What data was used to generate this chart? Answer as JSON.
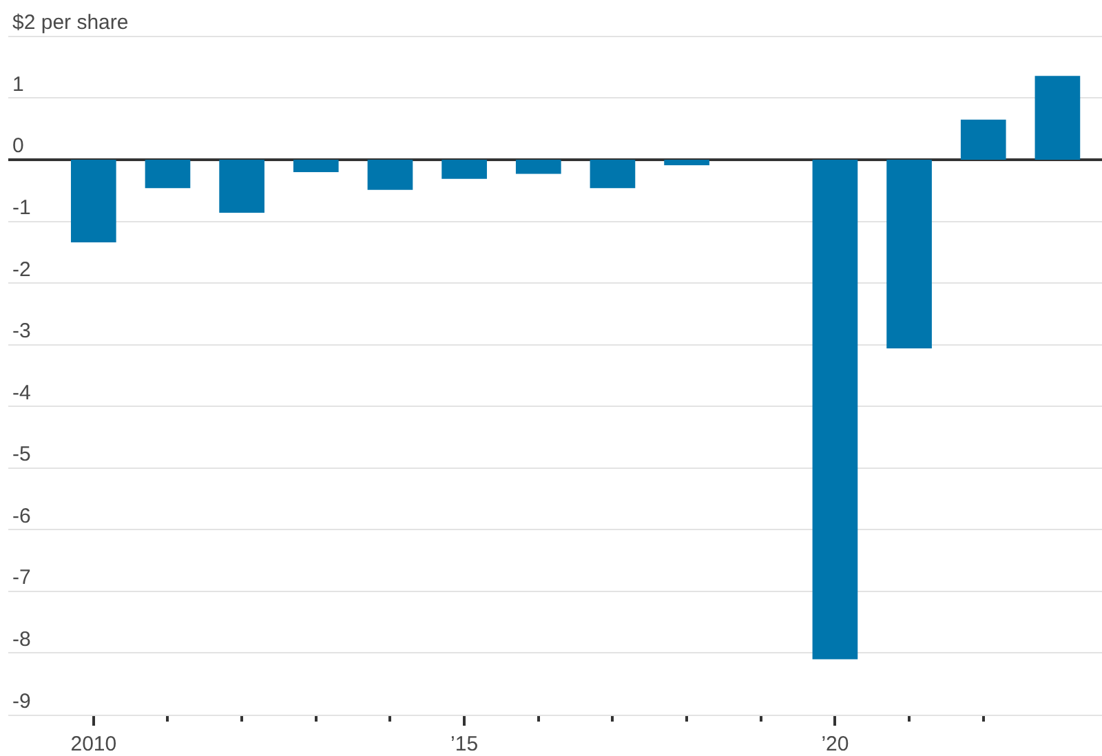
{
  "chart_data": {
    "type": "bar",
    "x": [
      2010,
      2011,
      2012,
      2013,
      2014,
      2015,
      2016,
      2017,
      2018,
      2019,
      2020,
      2021,
      2022,
      2023
    ],
    "values": [
      -1.34,
      -0.46,
      -0.86,
      -0.2,
      -0.49,
      -0.31,
      -0.23,
      -0.46,
      -0.09,
      null,
      -8.1,
      -3.06,
      0.65,
      1.36
    ],
    "color": "#0076ad",
    "ylim": [
      -9,
      2.59
    ],
    "yticks": [
      {
        "value": 2,
        "label": "$2 per share"
      },
      1,
      0,
      -1,
      -2,
      -3,
      -4,
      -5,
      -6,
      -7,
      -8,
      -9
    ],
    "xlim": [
      2008.85,
      2023.6
    ],
    "xticks": [
      {
        "value": 2010,
        "label": "2010"
      },
      {
        "value": 2011,
        "label": null
      },
      {
        "value": 2012,
        "label": null
      },
      {
        "value": 2013,
        "label": null
      },
      {
        "value": 2014,
        "label": null
      },
      {
        "value": 2015,
        "label": "’15"
      },
      {
        "value": 2016,
        "label": null
      },
      {
        "value": 2017,
        "label": null
      },
      {
        "value": 2018,
        "label": null
      },
      {
        "value": 2019,
        "label": null
      },
      {
        "value": 2020,
        "label": "’20"
      },
      {
        "value": 2021,
        "label": null
      },
      {
        "value": 2022,
        "label": null
      }
    ],
    "grid": "y"
  }
}
